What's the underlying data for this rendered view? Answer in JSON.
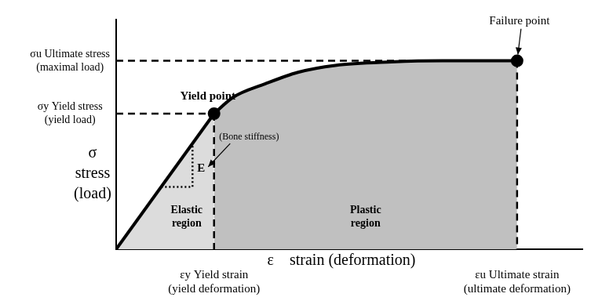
{
  "chart_data": {
    "type": "line",
    "x_label": "ε    strain (deformation)",
    "y_label": "σ\nstress\n(load)",
    "xlim": [
      0,
      100
    ],
    "ylim": [
      0,
      100
    ],
    "xticks": [
      {
        "value": 21,
        "label": "εy Yield strain\n(yield deformation)"
      },
      {
        "value": 86,
        "label": "εu Ultimate strain\n(ultimate deformation)"
      }
    ],
    "yticks": [
      {
        "value": 59,
        "label": "σy Yield stress\n(yield load)"
      },
      {
        "value": 82,
        "label": "σu Ultimate stress\n(maximal load)"
      }
    ],
    "series": [
      {
        "name": "Elastic region",
        "color": "#dcdcdc",
        "x": [
          0,
          21
        ],
        "values": [
          0,
          59
        ]
      },
      {
        "name": "Plastic region",
        "color": "#c0c0c0",
        "x": [
          21,
          25,
          32,
          39,
          47,
          59,
          70,
          86
        ],
        "values": [
          59,
          66,
          72,
          77,
          80,
          81.5,
          82,
          82
        ]
      }
    ],
    "annotations": {
      "yield_point": "Yield point",
      "failure_point": "Failure point",
      "stiffness": "(Bone stiffness)",
      "modulus": "E"
    },
    "grid": false
  }
}
